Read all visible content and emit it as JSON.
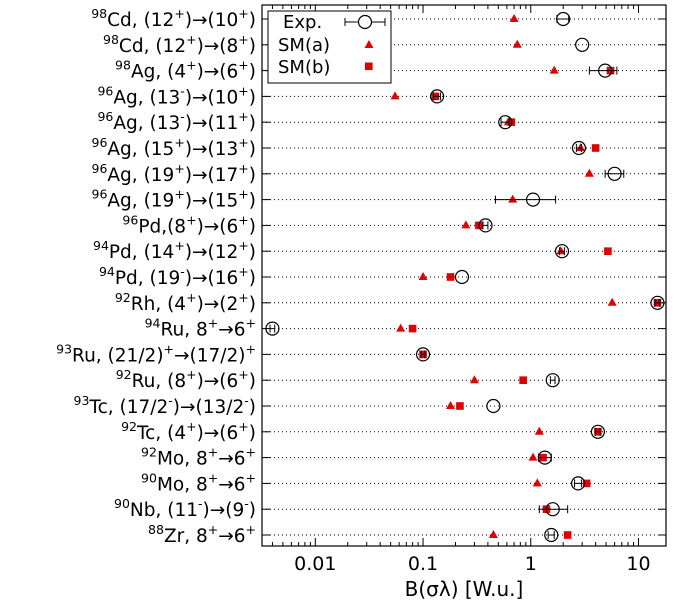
{
  "chart_data": {
    "type": "scatter",
    "xlabel": "B(σλ) [W.u.]",
    "xscale": "log",
    "xlim": [
      0.0032,
      18
    ],
    "xticks": [
      0.01,
      0.1,
      1,
      10
    ],
    "xtick_labels": [
      "0.01",
      "0.1",
      "1",
      "10"
    ],
    "grid": "horizontal dotted",
    "legend_position": "top-left",
    "series_names": [
      "Exp.",
      "SM(a)",
      "SM(b)"
    ],
    "colors": {
      "exp": "#000000",
      "sm_a": "#dd0000",
      "sm_b": "#dd0000"
    },
    "categories": [
      {
        "sup": "98",
        "main": "Cd, (12",
        "parts": [
          [
            "98",
            "sup"
          ],
          [
            "Cd, (12",
            ""
          ],
          [
            "+",
            "sup"
          ],
          [
            ")→(10",
            ""
          ],
          [
            "+",
            "sup"
          ],
          [
            ")",
            ""
          ]
        ],
        "exp": 2.0,
        "exp_err": [
          1.75,
          2.25
        ],
        "sm_a": 0.7,
        "sm_b": null
      },
      {
        "parts": [
          [
            "98",
            "sup"
          ],
          [
            "Cd, (12",
            ""
          ],
          [
            "+",
            "sup"
          ],
          [
            ")→(8",
            ""
          ],
          [
            "+",
            "sup"
          ],
          [
            ")",
            ""
          ]
        ],
        "exp": 3.0,
        "exp_err": null,
        "sm_a": 0.75,
        "sm_b": null
      },
      {
        "parts": [
          [
            "98",
            "sup"
          ],
          [
            "Ag, (4",
            ""
          ],
          [
            "+",
            "sup"
          ],
          [
            ")→(6",
            ""
          ],
          [
            "+",
            "sup"
          ],
          [
            ")",
            ""
          ]
        ],
        "exp": 4.9,
        "exp_err": [
          3.5,
          6.3
        ],
        "sm_a": 1.65,
        "sm_b": 5.5
      },
      {
        "parts": [
          [
            "96",
            "sup"
          ],
          [
            "Ag, (13",
            ""
          ],
          [
            "-",
            "sup"
          ],
          [
            ")→(10",
            ""
          ],
          [
            "+",
            "sup"
          ],
          [
            ")",
            ""
          ]
        ],
        "exp": 0.135,
        "exp_err": [
          0.125,
          0.145
        ],
        "sm_a": 0.055,
        "sm_b": 0.13
      },
      {
        "parts": [
          [
            "96",
            "sup"
          ],
          [
            "Ag, (13",
            ""
          ],
          [
            "-",
            "sup"
          ],
          [
            ")→(11",
            ""
          ],
          [
            "+",
            "sup"
          ],
          [
            ")",
            ""
          ]
        ],
        "exp": 0.58,
        "exp_err": [
          0.53,
          0.63
        ],
        "sm_a": 0.62,
        "sm_b": 0.66
      },
      {
        "parts": [
          [
            "96",
            "sup"
          ],
          [
            "Ag, (15",
            ""
          ],
          [
            "+",
            "sup"
          ],
          [
            ")→(13",
            ""
          ],
          [
            "+",
            "sup"
          ],
          [
            ")",
            ""
          ]
        ],
        "exp": 2.8,
        "exp_err": [
          2.65,
          2.95
        ],
        "sm_a": 2.9,
        "sm_b": 4.0
      },
      {
        "parts": [
          [
            "96",
            "sup"
          ],
          [
            "Ag, (19",
            ""
          ],
          [
            "+",
            "sup"
          ],
          [
            ")→(17",
            ""
          ],
          [
            "+",
            "sup"
          ],
          [
            ")",
            ""
          ]
        ],
        "exp": 6.0,
        "exp_err": [
          4.9,
          7.3
        ],
        "sm_a": 3.5,
        "sm_b": null
      },
      {
        "parts": [
          [
            "96",
            "sup"
          ],
          [
            "Ag, (19",
            ""
          ],
          [
            "+",
            "sup"
          ],
          [
            ")→(15",
            ""
          ],
          [
            "+",
            "sup"
          ],
          [
            ")",
            ""
          ]
        ],
        "exp": 1.05,
        "exp_err": [
          0.47,
          1.7
        ],
        "sm_a": 0.68,
        "sm_b": null
      },
      {
        "parts": [
          [
            "96",
            "sup"
          ],
          [
            "Pd,(8",
            ""
          ],
          [
            "+",
            "sup"
          ],
          [
            ")→(6",
            ""
          ],
          [
            "+",
            "sup"
          ],
          [
            ")",
            ""
          ]
        ],
        "exp": 0.38,
        "exp_err": [
          0.36,
          0.4
        ],
        "sm_a": 0.25,
        "sm_b": 0.33
      },
      {
        "parts": [
          [
            "94",
            "sup"
          ],
          [
            "Pd, (14",
            ""
          ],
          [
            "+",
            "sup"
          ],
          [
            ")→(12",
            ""
          ],
          [
            "+",
            "sup"
          ],
          [
            ")",
            ""
          ]
        ],
        "exp": 1.95,
        "exp_err": [
          1.85,
          2.05
        ],
        "sm_a": 1.9,
        "sm_b": 5.2
      },
      {
        "parts": [
          [
            "94",
            "sup"
          ],
          [
            "Pd, (19",
            ""
          ],
          [
            "-",
            "sup"
          ],
          [
            ")→(16",
            ""
          ],
          [
            "+",
            "sup"
          ],
          [
            ")",
            ""
          ]
        ],
        "exp": 0.23,
        "exp_err": null,
        "sm_a": 0.1,
        "sm_b": 0.18
      },
      {
        "parts": [
          [
            "92",
            "sup"
          ],
          [
            "Rh, (4",
            ""
          ],
          [
            "+",
            "sup"
          ],
          [
            ")→(2",
            ""
          ],
          [
            "+",
            "sup"
          ],
          [
            ")",
            ""
          ]
        ],
        "exp": 15.0,
        "exp_err": [
          14.2,
          15.8
        ],
        "sm_a": 5.7,
        "sm_b": 15.0
      },
      {
        "parts": [
          [
            "94",
            "sup"
          ],
          [
            "Ru, 8",
            ""
          ],
          [
            "+",
            "sup"
          ],
          [
            "→6",
            ""
          ],
          [
            "+",
            "sup"
          ]
        ],
        "exp": 0.004,
        "exp_err": [
          0.0038,
          0.0042
        ],
        "sm_a": 0.062,
        "sm_b": 0.08
      },
      {
        "parts": [
          [
            "93",
            "sup"
          ],
          [
            "Ru, (21/2)",
            ""
          ],
          [
            "+",
            "sup"
          ],
          [
            "→(17/2)",
            ""
          ],
          [
            "+",
            "sup"
          ]
        ],
        "exp": 0.1,
        "exp_err": [
          0.096,
          0.104
        ],
        "sm_a": null,
        "sm_b": 0.1
      },
      {
        "parts": [
          [
            "92",
            "sup"
          ],
          [
            "Ru, (8",
            ""
          ],
          [
            "+",
            "sup"
          ],
          [
            ")→(6",
            ""
          ],
          [
            "+",
            "sup"
          ],
          [
            ")",
            ""
          ]
        ],
        "exp": 1.6,
        "exp_err": [
          1.52,
          1.68
        ],
        "sm_a": 0.3,
        "sm_b": 0.85
      },
      {
        "parts": [
          [
            "93",
            "sup"
          ],
          [
            "Tc, (17/2",
            ""
          ],
          [
            "-",
            "sup"
          ],
          [
            ")→(13/2",
            ""
          ],
          [
            "-",
            "sup"
          ],
          [
            ")",
            ""
          ]
        ],
        "exp": 0.45,
        "exp_err": null,
        "sm_a": 0.18,
        "sm_b": 0.22
      },
      {
        "parts": [
          [
            "92",
            "sup"
          ],
          [
            "Tc, (4",
            ""
          ],
          [
            "+",
            "sup"
          ],
          [
            ")→(6",
            ""
          ],
          [
            "+",
            "sup"
          ],
          [
            ")",
            ""
          ]
        ],
        "exp": 4.2,
        "exp_err": [
          4.0,
          4.4
        ],
        "sm_a": 1.2,
        "sm_b": 4.2
      },
      {
        "parts": [
          [
            "92",
            "sup"
          ],
          [
            "Mo, 8",
            ""
          ],
          [
            "+",
            "sup"
          ],
          [
            "→6",
            ""
          ],
          [
            "+",
            "sup"
          ]
        ],
        "exp": 1.35,
        "exp_err": [
          1.18,
          1.55
        ],
        "sm_a": 1.05,
        "sm_b": 1.3
      },
      {
        "parts": [
          [
            "90",
            "sup"
          ],
          [
            "Mo, 8",
            ""
          ],
          [
            "+",
            "sup"
          ],
          [
            "→6",
            ""
          ],
          [
            "+",
            "sup"
          ]
        ],
        "exp": 2.75,
        "exp_err": [
          2.55,
          2.95
        ],
        "sm_a": 1.15,
        "sm_b": 3.3
      },
      {
        "parts": [
          [
            "90",
            "sup"
          ],
          [
            "Nb, (11",
            ""
          ],
          [
            "-",
            "sup"
          ],
          [
            ")→(9",
            ""
          ],
          [
            "-",
            "sup"
          ],
          [
            ")",
            ""
          ]
        ],
        "exp": 1.6,
        "exp_err": [
          1.2,
          2.2
        ],
        "sm_a": null,
        "sm_b": 1.4
      },
      {
        "parts": [
          [
            "88",
            "sup"
          ],
          [
            "Zr, 8",
            ""
          ],
          [
            "+",
            "sup"
          ],
          [
            "→6",
            ""
          ],
          [
            "+",
            "sup"
          ]
        ],
        "exp": 1.55,
        "exp_err": [
          1.45,
          1.65
        ],
        "sm_a": 0.45,
        "sm_b": 2.2
      }
    ]
  }
}
